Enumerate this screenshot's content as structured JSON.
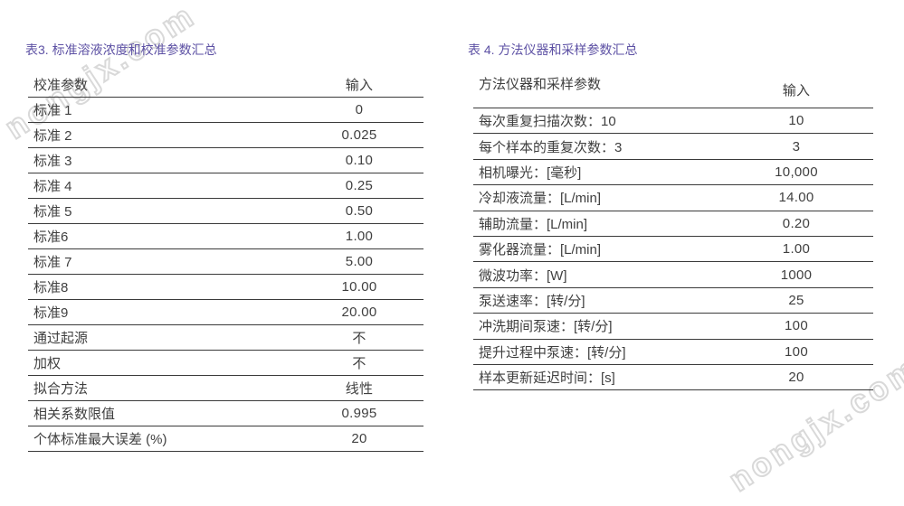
{
  "page": {
    "watermark_text": "nongjx.com"
  },
  "colors": {
    "title_purple": "#5d51a4",
    "body_text": "#3f3f3f",
    "rule_line": "#3a3a3a",
    "watermark_gray": "#d9d9d9",
    "background": "#ffffff"
  },
  "tables": [
    {
      "title": "表3. 标准溶液浓度和校准参数汇总",
      "header": {
        "param": "校准参数",
        "input": "输入"
      },
      "rows": [
        {
          "label": "标准 1",
          "value": "0"
        },
        {
          "label": "标准 2",
          "value": "0.025"
        },
        {
          "label": "标准 3",
          "value": "0.10"
        },
        {
          "label": "标准 4",
          "value": "0.25"
        },
        {
          "label": "标准 5",
          "value": "0.50"
        },
        {
          "label": "标准6",
          "value": "1.00"
        },
        {
          "label": "标准 7",
          "value": "5.00"
        },
        {
          "label": "标准8",
          "value": "10.00"
        },
        {
          "label": "标准9",
          "value": "20.00"
        },
        {
          "label": "通过起源",
          "value": "不"
        },
        {
          "label": "加权",
          "value": "不"
        },
        {
          "label": "拟合方法",
          "value": "线性"
        },
        {
          "label": "相关系数限值",
          "value": "0.995"
        },
        {
          "label": "个体标准最大误差 (%)",
          "value": "20"
        }
      ]
    },
    {
      "title": "表 4. 方法仪器和采样参数汇总",
      "header": {
        "param": "方法仪器和采样参数",
        "input": "输入"
      },
      "rows": [
        {
          "label": "每次重复扫描次数：10",
          "value": "10"
        },
        {
          "label": "每个样本的重复次数：3",
          "value": "3"
        },
        {
          "label": "相机曝光：[毫秒]",
          "value": "10,000"
        },
        {
          "label": "冷却液流量：[L/min]",
          "value": "14.00"
        },
        {
          "label": "辅助流量：[L/min]",
          "value": "0.20"
        },
        {
          "label": "雾化器流量：[L/min]",
          "value": "1.00"
        },
        {
          "label": "微波功率：[W]",
          "value": "1000"
        },
        {
          "label": "泵送速率：[转/分]",
          "value": "25"
        },
        {
          "label": "冲洗期间泵速：[转/分]",
          "value": "100"
        },
        {
          "label": "提升过程中泵速：[转/分]",
          "value": "100"
        },
        {
          "label": "样本更新延迟时间：[s]",
          "value": "20"
        }
      ]
    }
  ]
}
